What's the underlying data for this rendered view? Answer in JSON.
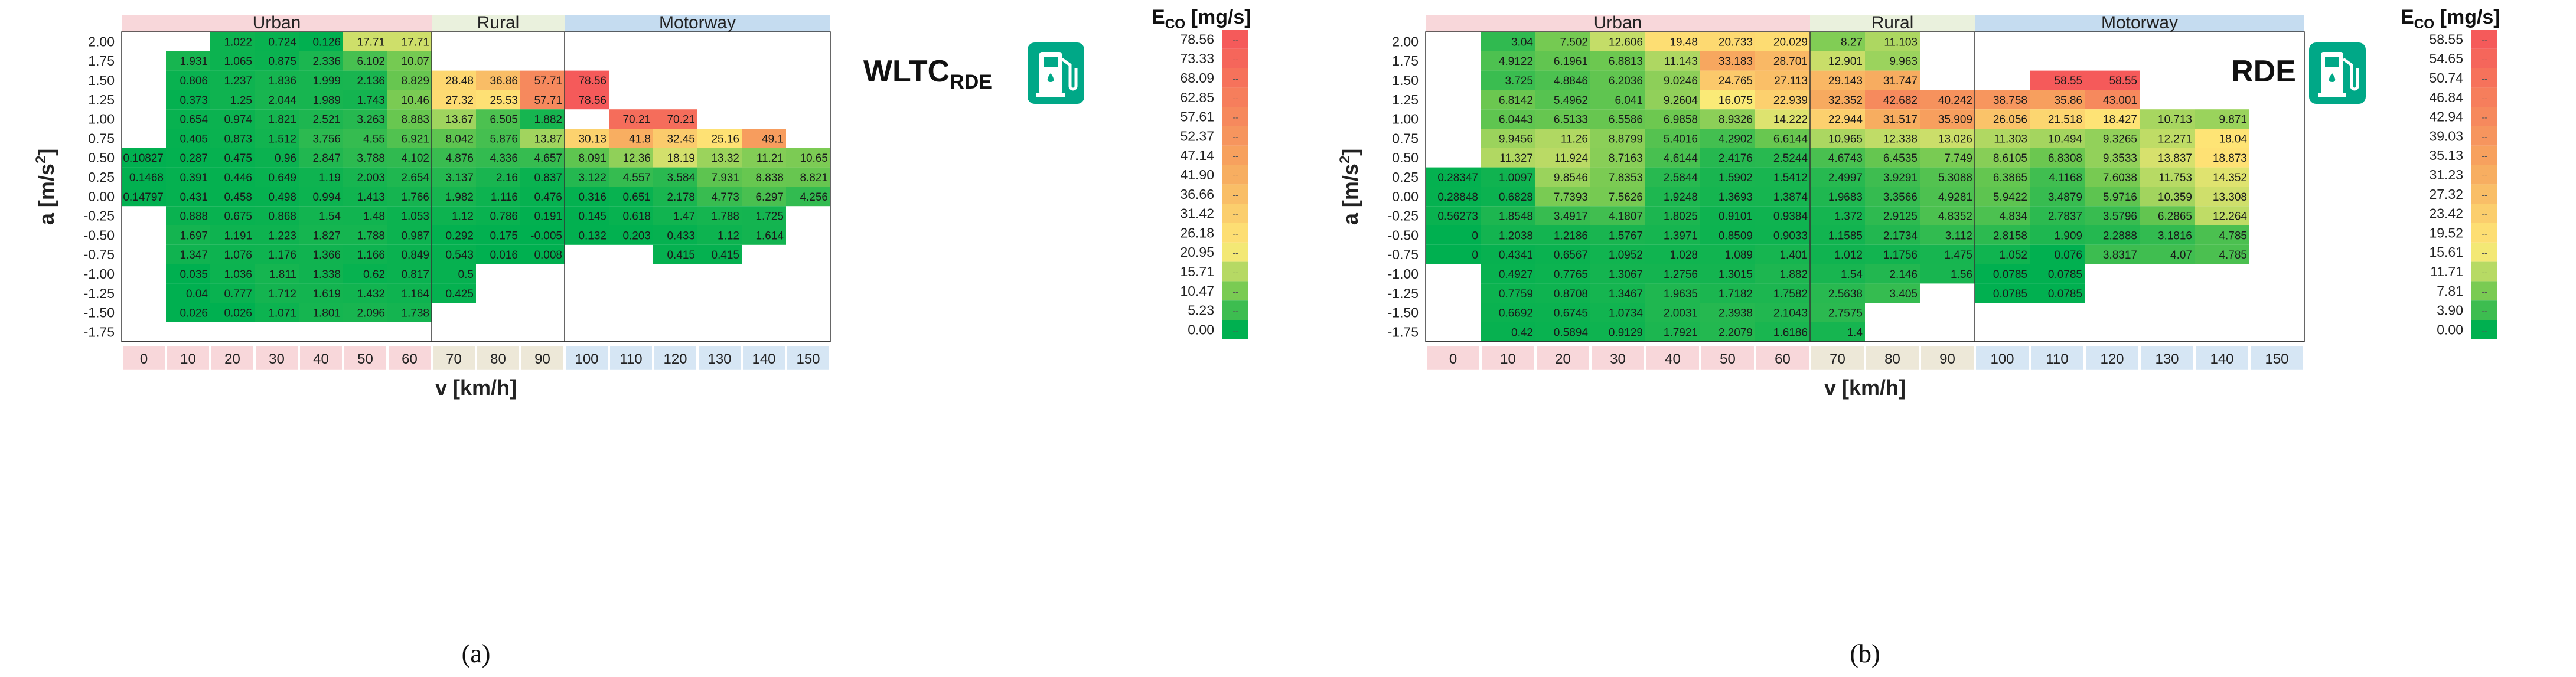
{
  "panel_labels": [
    "(a)",
    "(b)"
  ],
  "colorbar_title_main": "E",
  "colorbar_title_sub": "CO",
  "colorbar_title_unit": " [mg/s]",
  "colorbar_tick_mark": "--",
  "chart_data": [
    {
      "type": "heatmap",
      "panel": "(a)",
      "inset_main": "WLTC",
      "inset_sub": "RDE",
      "icon": "fuel-pump-icon",
      "xlabel_main": "v [km/h]",
      "ylabel_main": "a [m/s",
      "ylabel_sup": "2",
      "ylabel_close": "]",
      "x_ticks": [
        "0",
        "10",
        "20",
        "30",
        "40",
        "50",
        "60",
        "70",
        "80",
        "90",
        "100",
        "110",
        "120",
        "130",
        "140",
        "150"
      ],
      "y_ticks": [
        "2.00",
        "1.75",
        "1.50",
        "1.25",
        "1.00",
        "0.75",
        "0.50",
        "0.25",
        "0.00",
        "-0.25",
        "-0.50",
        "-0.75",
        "-1.00",
        "-1.25",
        "-1.50",
        "-1.75"
      ],
      "regions": [
        {
          "name": "Urban",
          "from": 0,
          "to": 6,
          "header_color": "#f8d7da",
          "tick_color": "#f8d7da"
        },
        {
          "name": "Rural",
          "from": 7,
          "to": 9,
          "header_color": "#eaf1dd",
          "tick_color": "#ede8d8"
        },
        {
          "name": "Motorway",
          "from": 10,
          "to": 15,
          "header_color": "#c5dcf0",
          "tick_color": "#d6e6f4"
        }
      ],
      "colorbar": {
        "ticks": [
          "78.56",
          "73.33",
          "68.09",
          "62.85",
          "57.61",
          "52.37",
          "47.14",
          "41.90",
          "36.66",
          "31.42",
          "26.18",
          "20.95",
          "15.71",
          "10.47",
          "5.23",
          "0.00"
        ],
        "min": 0,
        "max": 78.56
      },
      "cells": [
        [
          null,
          null,
          "1.022",
          "0.724",
          "0.126",
          "17.71",
          "17.71",
          null,
          null,
          null,
          null,
          null,
          null,
          null,
          null,
          null
        ],
        [
          null,
          "1.931",
          "1.065",
          "0.875",
          "2.336",
          "6.102",
          "10.07",
          null,
          null,
          null,
          null,
          null,
          null,
          null,
          null,
          null
        ],
        [
          null,
          "0.806",
          "1.237",
          "1.836",
          "1.999",
          "2.136",
          "8.829",
          "28.48",
          "36.86",
          "57.71",
          "78.56",
          null,
          null,
          null,
          null,
          null
        ],
        [
          null,
          "0.373",
          "1.25",
          "2.044",
          "1.989",
          "1.743",
          "10.46",
          "27.32",
          "25.53",
          "57.71",
          "78.56",
          null,
          null,
          null,
          null,
          null
        ],
        [
          null,
          "0.654",
          "0.974",
          "1.821",
          "2.521",
          "3.263",
          "8.883",
          "13.67",
          "6.505",
          "1.882",
          null,
          "70.21",
          "70.21",
          null,
          null,
          null
        ],
        [
          null,
          "0.405",
          "0.873",
          "1.512",
          "3.756",
          "4.55",
          "6.921",
          "8.042",
          "5.876",
          "13.87",
          "30.13",
          "41.8",
          "32.45",
          "25.16",
          "49.1",
          null
        ],
        [
          "0.10827",
          "0.287",
          "0.475",
          "0.96",
          "2.847",
          "3.788",
          "4.102",
          "4.876",
          "4.336",
          "4.657",
          "8.091",
          "12.36",
          "18.19",
          "13.32",
          "11.21",
          "10.65"
        ],
        [
          "0.1468",
          "0.391",
          "0.446",
          "0.649",
          "1.19",
          "2.003",
          "2.654",
          "3.137",
          "2.16",
          "0.837",
          "3.122",
          "4.557",
          "3.584",
          "7.931",
          "8.838",
          "8.821"
        ],
        [
          "0.14797",
          "0.431",
          "0.458",
          "0.498",
          "0.994",
          "1.413",
          "1.766",
          "1.982",
          "1.116",
          "0.476",
          "0.316",
          "0.651",
          "2.178",
          "4.773",
          "6.297",
          "4.256"
        ],
        [
          null,
          "0.888",
          "0.675",
          "0.868",
          "1.54",
          "1.48",
          "1.053",
          "1.12",
          "0.786",
          "0.191",
          "0.145",
          "0.618",
          "1.47",
          "1.788",
          "1.725",
          null
        ],
        [
          null,
          "1.697",
          "1.191",
          "1.223",
          "1.827",
          "1.788",
          "0.987",
          "0.292",
          "0.175",
          "-0.005",
          "0.132",
          "0.203",
          "0.433",
          "1.12",
          "1.614",
          null
        ],
        [
          null,
          "1.347",
          "1.076",
          "1.176",
          "1.366",
          "1.166",
          "0.849",
          "0.543",
          "0.016",
          "0.008",
          null,
          null,
          "0.415",
          "0.415",
          null,
          null
        ],
        [
          null,
          "0.035",
          "1.036",
          "1.811",
          "1.338",
          "0.62",
          "0.817",
          "0.5",
          null,
          null,
          null,
          null,
          null,
          null,
          null,
          null
        ],
        [
          null,
          "0.04",
          "0.777",
          "1.712",
          "1.619",
          "1.432",
          "1.164",
          "0.425",
          null,
          null,
          null,
          null,
          null,
          null,
          null,
          null
        ],
        [
          null,
          "0.026",
          "0.026",
          "1.071",
          "1.801",
          "2.096",
          "1.738",
          null,
          null,
          null,
          null,
          null,
          null,
          null,
          null,
          null
        ],
        [
          null,
          null,
          null,
          null,
          null,
          null,
          null,
          null,
          null,
          null,
          null,
          null,
          null,
          null,
          null,
          null
        ]
      ]
    },
    {
      "type": "heatmap",
      "panel": "(b)",
      "inset_main": "RDE",
      "inset_sub": "",
      "icon": "fuel-pump-icon",
      "xlabel_main": "v [km/h]",
      "ylabel_main": "a [m/s",
      "ylabel_sup": "2",
      "ylabel_close": "]",
      "x_ticks": [
        "0",
        "10",
        "20",
        "30",
        "40",
        "50",
        "60",
        "70",
        "80",
        "90",
        "100",
        "110",
        "120",
        "130",
        "140",
        "150"
      ],
      "y_ticks": [
        "2.00",
        "1.75",
        "1.50",
        "1.25",
        "1.00",
        "0.75",
        "0.50",
        "0.25",
        "0.00",
        "-0.25",
        "-0.50",
        "-0.75",
        "-1.00",
        "-1.25",
        "-1.50",
        "-1.75"
      ],
      "regions": [
        {
          "name": "Urban",
          "from": 0,
          "to": 6,
          "header_color": "#f8d7da",
          "tick_color": "#f8d7da"
        },
        {
          "name": "Rural",
          "from": 7,
          "to": 9,
          "header_color": "#eaf1dd",
          "tick_color": "#ede8d8"
        },
        {
          "name": "Motorway",
          "from": 10,
          "to": 15,
          "header_color": "#c5dcf0",
          "tick_color": "#d6e6f4"
        }
      ],
      "colorbar": {
        "ticks": [
          "58.55",
          "54.65",
          "50.74",
          "46.84",
          "42.94",
          "39.03",
          "35.13",
          "31.23",
          "27.32",
          "23.42",
          "19.52",
          "15.61",
          "11.71",
          "7.81",
          "3.90",
          "0.00"
        ],
        "min": 0,
        "max": 58.55
      },
      "cells": [
        [
          null,
          "3.04",
          "7.502",
          "12.606",
          "19.48",
          "20.733",
          "20.029",
          "8.27",
          "11.103",
          null,
          null,
          null,
          null,
          null,
          null,
          null
        ],
        [
          null,
          "4.9122",
          "6.1961",
          "6.8813",
          "11.143",
          "33.183",
          "28.701",
          "12.901",
          "9.963",
          null,
          null,
          null,
          null,
          null,
          null,
          null
        ],
        [
          null,
          "3.725",
          "4.8846",
          "6.2036",
          "9.0246",
          "24.765",
          "27.113",
          "29.143",
          "31.747",
          null,
          null,
          "58.55",
          "58.55",
          null,
          null,
          null
        ],
        [
          null,
          "6.8142",
          "5.4962",
          "6.041",
          "9.2604",
          "16.075",
          "22.939",
          "32.352",
          "42.682",
          "40.242",
          "38.758",
          "35.86",
          "43.001",
          null,
          null,
          null
        ],
        [
          null,
          "6.0443",
          "6.5133",
          "6.5586",
          "6.9858",
          "8.9326",
          "14.222",
          "22.944",
          "31.517",
          "35.909",
          "26.056",
          "21.518",
          "18.427",
          "10.713",
          "9.871",
          null
        ],
        [
          null,
          "9.9456",
          "11.26",
          "8.8799",
          "5.4016",
          "4.2902",
          "6.6144",
          "10.965",
          "12.338",
          "13.026",
          "11.303",
          "10.494",
          "9.3265",
          "12.271",
          "18.04",
          null
        ],
        [
          null,
          "11.327",
          "11.924",
          "8.7163",
          "4.6144",
          "2.4176",
          "2.5244",
          "4.6743",
          "6.4535",
          "7.749",
          "8.6105",
          "6.8308",
          "9.3533",
          "13.837",
          "18.873",
          null
        ],
        [
          "0.28347",
          "1.0097",
          "9.8546",
          "7.8353",
          "2.5844",
          "1.5902",
          "1.5412",
          "2.4997",
          "3.9291",
          "5.3088",
          "6.3865",
          "4.1168",
          "7.6038",
          "11.753",
          "14.352",
          null
        ],
        [
          "0.28848",
          "0.6828",
          "7.7393",
          "7.5626",
          "1.9248",
          "1.3693",
          "1.3874",
          "1.9683",
          "3.3566",
          "4.9281",
          "5.9422",
          "3.4879",
          "5.9716",
          "10.359",
          "13.308",
          null
        ],
        [
          "0.56273",
          "1.8548",
          "3.4917",
          "4.1807",
          "1.8025",
          "0.9101",
          "0.9384",
          "1.372",
          "2.9125",
          "4.8352",
          "4.834",
          "2.7837",
          "3.5796",
          "6.2865",
          "12.264",
          null
        ],
        [
          "0",
          "1.2038",
          "1.2186",
          "1.5767",
          "1.3971",
          "0.8509",
          "0.9033",
          "1.1585",
          "2.1734",
          "3.112",
          "2.8158",
          "1.909",
          "2.2888",
          "3.1816",
          "4.785",
          null
        ],
        [
          "0",
          "0.4341",
          "0.6567",
          "1.0952",
          "1.028",
          "1.089",
          "1.401",
          "1.012",
          "1.1756",
          "1.475",
          "1.052",
          "0.076",
          "3.8317",
          "4.07",
          "4.785",
          null
        ],
        [
          null,
          "0.4927",
          "0.7765",
          "1.3067",
          "1.2756",
          "1.3015",
          "1.882",
          "1.54",
          "2.146",
          "1.56",
          "0.0785",
          "0.0785",
          null,
          null,
          null,
          null
        ],
        [
          null,
          "0.7759",
          "0.8708",
          "1.3467",
          "1.9635",
          "1.7182",
          "1.7582",
          "2.5638",
          "3.405",
          null,
          "0.0785",
          "0.0785",
          null,
          null,
          null,
          null
        ],
        [
          null,
          "0.6692",
          "0.6745",
          "1.0734",
          "2.0031",
          "2.3938",
          "2.1043",
          "2.7575",
          null,
          null,
          null,
          null,
          null,
          null,
          null,
          null
        ],
        [
          null,
          "0.42",
          "0.5894",
          "0.9129",
          "1.7921",
          "2.2079",
          "1.6186",
          "1.4",
          null,
          null,
          null,
          null,
          null,
          null,
          null,
          null
        ]
      ]
    }
  ]
}
